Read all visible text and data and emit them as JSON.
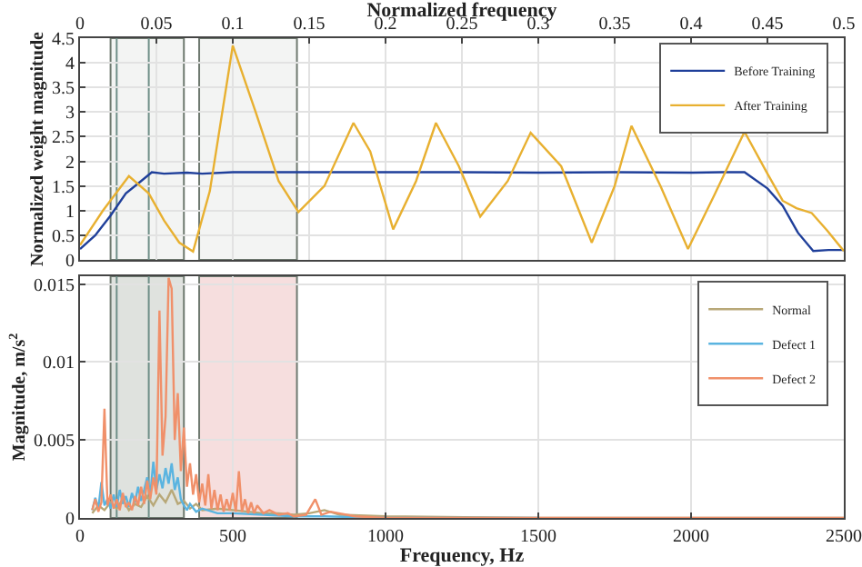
{
  "chart_data": [
    {
      "type": "line",
      "xlabel": "Normalized frequency",
      "ylabel": "Normalized weight magnitude",
      "xlim": [
        0,
        0.5
      ],
      "xticks": [
        0,
        0.05,
        0.1,
        0.15,
        0.2,
        0.25,
        0.3,
        0.35,
        0.4,
        0.45,
        0.5
      ],
      "ylim": [
        0,
        4.5
      ],
      "yticks": [
        0,
        0.5,
        1,
        1.5,
        2,
        2.5,
        3,
        3.5,
        4,
        4.5
      ],
      "grid": true,
      "legend": "top right",
      "line_style": "solid",
      "marker": "none",
      "series": [
        {
          "name": "Before Training",
          "color": "#1f3f9a",
          "x": [
            0,
            0.01,
            0.02,
            0.03,
            0.04,
            0.047,
            0.055,
            0.07,
            0.08,
            0.1,
            0.15,
            0.2,
            0.25,
            0.3,
            0.35,
            0.4,
            0.42,
            0.435,
            0.45,
            0.46,
            0.47,
            0.48,
            0.49,
            0.5
          ],
          "values": [
            0.22,
            0.5,
            0.9,
            1.35,
            1.6,
            1.78,
            1.75,
            1.77,
            1.75,
            1.78,
            1.78,
            1.78,
            1.78,
            1.77,
            1.78,
            1.77,
            1.78,
            1.78,
            1.45,
            1.1,
            0.55,
            0.18,
            0.2,
            0.2
          ]
        },
        {
          "name": "After Training",
          "color": "#e8b030",
          "x": [
            0,
            0.015,
            0.032,
            0.045,
            0.055,
            0.065,
            0.074,
            0.085,
            0.1,
            0.115,
            0.13,
            0.143,
            0.16,
            0.179,
            0.19,
            0.205,
            0.22,
            0.233,
            0.248,
            0.262,
            0.28,
            0.295,
            0.315,
            0.335,
            0.35,
            0.361,
            0.38,
            0.398,
            0.415,
            0.435,
            0.45,
            0.46,
            0.469,
            0.479,
            0.489,
            0.5
          ],
          "values": [
            0.3,
            1.0,
            1.7,
            1.35,
            0.8,
            0.35,
            0.17,
            1.4,
            4.35,
            3.0,
            1.6,
            0.97,
            1.5,
            2.78,
            2.2,
            0.62,
            1.6,
            2.78,
            1.9,
            0.88,
            1.6,
            2.58,
            1.9,
            0.35,
            1.5,
            2.72,
            1.5,
            0.22,
            1.3,
            2.6,
            1.75,
            1.2,
            1.05,
            0.95,
            0.6,
            0.18
          ]
        }
      ],
      "ref_lines": [
        {
          "axis": "x",
          "value": 0.024,
          "color": "#6f8f88"
        },
        {
          "axis": "x",
          "value": 0.045,
          "color": "#6f8f88"
        }
      ],
      "bands": [
        {
          "axis": "x",
          "from": 0.02,
          "to": 0.068,
          "color": "#f3f4f3"
        },
        {
          "axis": "x",
          "from": 0.078,
          "to": 0.142,
          "color": "#f3f4f3"
        }
      ]
    },
    {
      "type": "line",
      "xlabel": "Frequency, Hz",
      "ylabel": "Magnitude, m/s$^{2}$",
      "xlim": [
        0,
        2500
      ],
      "xticks": [
        0,
        500,
        1000,
        1500,
        2000,
        2500
      ],
      "ylim": [
        0,
        0.0155
      ],
      "yticks": [
        0,
        0.005,
        0.01,
        0.015
      ],
      "grid": true,
      "legend": "top right",
      "line_style": "solid",
      "marker": "none",
      "series": [
        {
          "name": "Normal",
          "color": "#b8a878",
          "x": [
            40,
            60,
            80,
            100,
            120,
            140,
            160,
            180,
            200,
            220,
            240,
            260,
            280,
            300,
            320,
            340,
            360,
            380,
            400,
            450,
            500,
            550,
            600,
            650,
            700,
            750,
            800,
            850,
            1000,
            1500,
            2000,
            2500
          ],
          "values": [
            0.0003,
            0.0008,
            0.0005,
            0.001,
            0.0006,
            0.0012,
            0.0005,
            0.0009,
            0.0007,
            0.0014,
            0.0008,
            0.0015,
            0.001,
            0.0018,
            0.0009,
            0.0011,
            0.0006,
            0.0009,
            0.0005,
            0.0006,
            0.0005,
            0.0004,
            0.0003,
            0.0003,
            0.0002,
            0.0003,
            0.0005,
            0.0002,
            0.0001,
            0,
            0,
            0
          ]
        },
        {
          "name": "Defect 1",
          "color": "#5ab4e0",
          "x": [
            40,
            50,
            60,
            70,
            80,
            90,
            100,
            110,
            120,
            130,
            140,
            150,
            160,
            170,
            180,
            190,
            200,
            210,
            220,
            230,
            240,
            250,
            260,
            270,
            280,
            290,
            300,
            310,
            320,
            330,
            340,
            350,
            360,
            380,
            400,
            450,
            500,
            600,
            700,
            800,
            1000,
            1500
          ],
          "values": [
            0.0005,
            0.0013,
            0.0006,
            0.0023,
            0.0008,
            0.0012,
            0.0006,
            0.0015,
            0.0007,
            0.0018,
            0.0009,
            0.0014,
            0.0007,
            0.0016,
            0.001,
            0.002,
            0.0011,
            0.0018,
            0.0026,
            0.0015,
            0.0036,
            0.0018,
            0.0028,
            0.0019,
            0.0032,
            0.0022,
            0.0035,
            0.0018,
            0.0026,
            0.0012,
            0.0008,
            0.0005,
            0.0009,
            0.0004,
            0.0006,
            0.0003,
            0.0003,
            0.0002,
            0.0001,
            0.0001,
            0,
            0
          ]
        },
        {
          "name": "Defect 2",
          "color": "#f0906a",
          "x": [
            40,
            50,
            60,
            70,
            80,
            90,
            100,
            110,
            120,
            130,
            140,
            150,
            160,
            170,
            180,
            190,
            200,
            210,
            220,
            230,
            240,
            250,
            260,
            270,
            280,
            290,
            300,
            310,
            320,
            330,
            340,
            350,
            360,
            370,
            380,
            390,
            400,
            410,
            420,
            430,
            440,
            450,
            460,
            470,
            480,
            490,
            500,
            510,
            520,
            530,
            540,
            550,
            560,
            570,
            580,
            600,
            620,
            650,
            680,
            700,
            740,
            770,
            790,
            820,
            900,
            1000,
            1500,
            2000,
            2500
          ],
          "values": [
            0.0005,
            0.0012,
            0.0004,
            0.001,
            0.007,
            0.0008,
            0.0015,
            0.0006,
            0.0012,
            0.0005,
            0.0016,
            0.0007,
            0.001,
            0.0005,
            0.0014,
            0.0008,
            0.002,
            0.0009,
            0.0024,
            0.0012,
            0.0026,
            0.0015,
            0.0133,
            0.004,
            0.0065,
            0.0154,
            0.0147,
            0.005,
            0.008,
            0.003,
            0.0058,
            0.002,
            0.0035,
            0.0015,
            0.0028,
            0.001,
            0.0022,
            0.0008,
            0.0028,
            0.0006,
            0.0018,
            0.0005,
            0.0015,
            0.0004,
            0.0012,
            0.0005,
            0.0016,
            0.0004,
            0.003,
            0.0004,
            0.0012,
            0.0003,
            0.001,
            0.0003,
            0.0008,
            0.0003,
            0.0005,
            0.0002,
            0.0003,
            0.0001,
            0.0002,
            0.0012,
            0.0002,
            0.0004,
            0.0001,
            0,
            0,
            0,
            0
          ]
        }
      ],
      "ref_lines": [
        {
          "axis": "x",
          "value": 120,
          "color": "#6f8f88"
        },
        {
          "axis": "x",
          "value": 225,
          "color": "#6f8f88"
        }
      ],
      "bands": [
        {
          "axis": "x",
          "from": 100,
          "to": 340,
          "color": "#dfe2de"
        },
        {
          "axis": "x",
          "from": 390,
          "to": 710,
          "color": "#f6dede"
        }
      ]
    }
  ]
}
